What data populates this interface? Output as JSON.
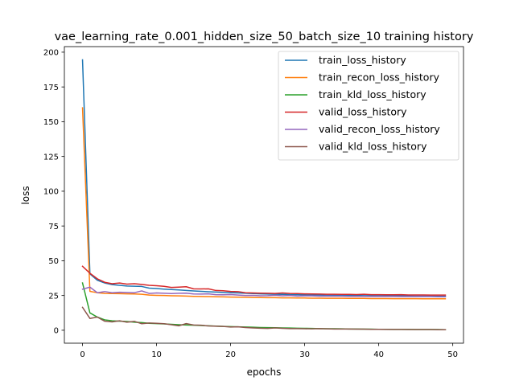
{
  "chart_data": {
    "type": "line",
    "title": "vae_learning_rate_0.001_hidden_size_50_batch_size_10 training history",
    "xlabel": "epochs",
    "ylabel": "loss",
    "xlim": [
      -2.45,
      51.45
    ],
    "ylim": [
      -9.3,
      204.0
    ],
    "xticks": [
      0,
      10,
      20,
      30,
      40,
      50
    ],
    "yticks": [
      0,
      25,
      50,
      75,
      100,
      125,
      150,
      175,
      200
    ],
    "grid": false,
    "legend_position": "top-right",
    "series": [
      {
        "name": "train_loss_history",
        "color": "#1f77b4",
        "values": [
          194.5,
          40.5,
          36.0,
          34.0,
          32.8,
          32.3,
          31.8,
          31.7,
          31.5,
          30.3,
          30.0,
          29.6,
          29.3,
          29.0,
          28.6,
          28.3,
          28.0,
          27.7,
          27.5,
          27.2,
          27.0,
          26.8,
          26.6,
          26.4,
          26.2,
          26.0,
          25.9,
          25.8,
          25.7,
          25.6,
          25.5,
          25.4,
          25.3,
          25.2,
          25.2,
          25.1,
          25.0,
          25.0,
          24.9,
          24.9,
          24.8,
          24.8,
          24.7,
          24.7,
          24.7,
          24.6,
          24.6,
          24.6,
          24.5,
          24.5
        ]
      },
      {
        "name": "train_recon_loss_history",
        "color": "#ff7f0e",
        "values": [
          160.0,
          28.0,
          27.0,
          26.5,
          26.4,
          26.3,
          26.2,
          26.1,
          25.9,
          25.3,
          25.1,
          25.0,
          24.8,
          24.7,
          24.6,
          24.4,
          24.3,
          24.2,
          24.1,
          24.0,
          23.9,
          23.8,
          23.7,
          23.6,
          23.5,
          23.4,
          23.4,
          23.3,
          23.3,
          23.2,
          23.2,
          23.1,
          23.1,
          23.0,
          23.0,
          23.0,
          22.9,
          22.9,
          22.9,
          22.8,
          22.8,
          22.8,
          22.7,
          22.7,
          22.7,
          22.7,
          22.6,
          22.6,
          22.6,
          22.6
        ]
      },
      {
        "name": "train_kld_loss_history",
        "color": "#2ca02c",
        "values": [
          34.0,
          12.5,
          9.5,
          7.5,
          6.8,
          6.5,
          6.3,
          5.8,
          5.5,
          5.0,
          4.8,
          4.6,
          4.3,
          4.0,
          3.8,
          3.6,
          3.4,
          3.2,
          3.0,
          2.8,
          2.6,
          2.5,
          2.3,
          2.2,
          2.0,
          1.9,
          1.8,
          1.7,
          1.6,
          1.5,
          1.4,
          1.3,
          1.2,
          1.1,
          1.1,
          1.0,
          0.9,
          0.9,
          0.8,
          0.8,
          0.7,
          0.7,
          0.6,
          0.6,
          0.6,
          0.5,
          0.5,
          0.5,
          0.5,
          0.4
        ]
      },
      {
        "name": "valid_loss_history",
        "color": "#d62728",
        "values": [
          46.0,
          41.0,
          37.0,
          34.5,
          33.5,
          34.0,
          33.2,
          33.5,
          33.0,
          32.3,
          32.0,
          31.6,
          30.8,
          31.0,
          31.3,
          29.8,
          29.7,
          29.8,
          28.6,
          28.4,
          27.9,
          27.8,
          27.0,
          26.8,
          26.7,
          26.6,
          26.5,
          26.8,
          26.5,
          26.4,
          26.2,
          26.1,
          26.0,
          25.9,
          25.9,
          25.8,
          25.8,
          25.7,
          25.9,
          25.6,
          25.6,
          25.5,
          25.5,
          25.6,
          25.4,
          25.4,
          25.4,
          25.3,
          25.3,
          25.3
        ]
      },
      {
        "name": "valid_recon_loss_history",
        "color": "#9467bd",
        "values": [
          29.5,
          31.0,
          27.0,
          27.8,
          27.0,
          27.3,
          27.2,
          27.0,
          28.3,
          26.5,
          26.8,
          26.6,
          26.4,
          26.6,
          26.7,
          26.1,
          26.0,
          26.2,
          25.6,
          25.5,
          25.7,
          25.3,
          25.0,
          25.1,
          24.8,
          24.9,
          25.2,
          24.8,
          25.0,
          24.6,
          24.7,
          24.7,
          24.5,
          24.6,
          24.5,
          24.5,
          24.4,
          24.4,
          24.4,
          24.3,
          24.3,
          24.3,
          24.3,
          24.2,
          24.2,
          24.2,
          24.2,
          24.2,
          24.1,
          24.1
        ]
      },
      {
        "name": "valid_kld_loss_history",
        "color": "#8c564b",
        "values": [
          16.5,
          8.5,
          9.5,
          6.5,
          6.0,
          6.8,
          5.8,
          6.4,
          4.7,
          5.2,
          5.0,
          4.7,
          4.0,
          3.2,
          4.8,
          3.8,
          3.6,
          3.1,
          2.9,
          2.8,
          2.3,
          2.5,
          2.0,
          1.7,
          1.5,
          1.3,
          1.7,
          1.4,
          1.2,
          1.2,
          1.1,
          1.0,
          1.2,
          1.0,
          0.9,
          0.9,
          0.9,
          0.8,
          0.8,
          0.7,
          0.7,
          0.6,
          0.6,
          0.6,
          0.5,
          0.5,
          0.5,
          0.5,
          0.4,
          0.4
        ]
      }
    ]
  }
}
